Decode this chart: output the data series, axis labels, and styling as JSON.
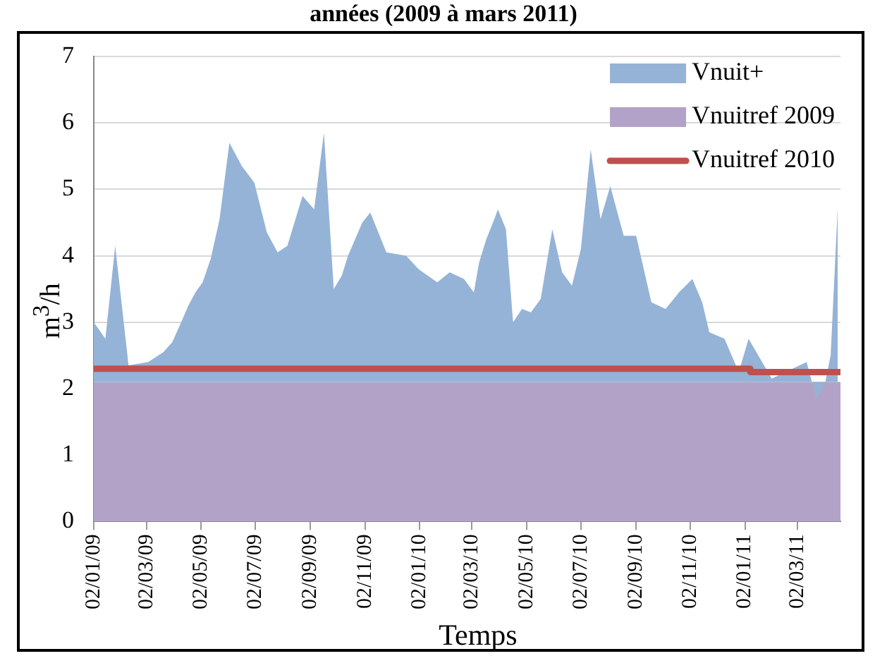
{
  "chart_data": {
    "type": "area",
    "title": "années (2009 à mars 2011)",
    "xlabel": "Temps",
    "ylabel": "m$^{3}$/h",
    "series": [
      {
        "name": "Vnuit+",
        "type": "area",
        "color": "#95b3d7",
        "x": [
          "2009-01-02",
          "2009-01-15",
          "2009-01-26",
          "2009-02-10",
          "2009-03-04",
          "2009-03-21",
          "2009-03-31",
          "2009-04-10",
          "2009-04-18",
          "2009-04-26",
          "2009-05-04",
          "2009-05-13",
          "2009-05-23",
          "2009-06-03",
          "2009-06-17",
          "2009-07-01",
          "2009-07-15",
          "2009-07-27",
          "2009-08-07",
          "2009-08-24",
          "2009-09-06",
          "2009-09-17",
          "2009-09-28",
          "2009-10-07",
          "2009-10-14",
          "2009-10-22",
          "2009-10-30",
          "2009-11-08",
          "2009-11-26",
          "2009-12-18",
          "2010-01-01",
          "2010-01-22",
          "2010-02-05",
          "2010-02-21",
          "2010-03-04",
          "2010-03-10",
          "2010-03-18",
          "2010-03-27",
          "2010-03-31",
          "2010-04-09",
          "2010-04-17",
          "2010-04-27",
          "2010-05-07",
          "2010-05-18",
          "2010-05-31",
          "2010-06-11",
          "2010-06-22",
          "2010-07-02",
          "2010-07-13",
          "2010-07-24",
          "2010-08-04",
          "2010-08-19",
          "2010-09-02",
          "2010-09-19",
          "2010-10-05",
          "2010-10-20",
          "2010-11-04",
          "2010-11-15",
          "2010-11-23",
          "2010-12-10",
          "2010-12-26",
          "2011-01-06",
          "2011-02-01",
          "2011-03-12",
          "2011-03-23",
          "2011-04-02",
          "2011-04-08",
          "2011-04-16"
        ],
        "values": [
          3.0,
          2.75,
          4.15,
          2.35,
          2.4,
          2.55,
          2.7,
          3.0,
          3.25,
          3.45,
          3.6,
          3.95,
          4.55,
          5.7,
          5.35,
          5.1,
          4.35,
          4.05,
          4.15,
          4.9,
          4.7,
          5.85,
          3.5,
          3.7,
          4.0,
          4.25,
          4.5,
          4.65,
          4.05,
          4.0,
          3.8,
          3.6,
          3.75,
          3.65,
          3.45,
          3.9,
          4.25,
          4.55,
          4.7,
          4.4,
          3.0,
          3.2,
          3.15,
          3.35,
          4.4,
          3.75,
          3.55,
          4.1,
          5.6,
          4.55,
          5.05,
          4.3,
          4.3,
          3.3,
          3.2,
          3.45,
          3.65,
          3.3,
          2.85,
          2.75,
          2.25,
          2.75,
          2.15,
          2.4,
          1.85,
          2.1,
          2.5,
          4.75
        ]
      },
      {
        "name": "Vnuitref 2009",
        "type": "area",
        "color": "#b3a2c7",
        "x": [
          "2009-01-02",
          "2011-04-19"
        ],
        "values": [
          2.1,
          2.1
        ]
      },
      {
        "name": "Vnuitref 2010",
        "type": "line",
        "color": "#c0504d",
        "x": [
          "2009-01-02",
          "2011-01-08",
          "2011-01-08",
          "2011-04-19"
        ],
        "values": [
          2.3,
          2.3,
          2.25,
          2.25
        ]
      }
    ],
    "xlim": [
      "2009-01-02",
      "2011-04-19"
    ],
    "xticks": [
      {
        "value": "2009-01-02",
        "label": "02/01/09"
      },
      {
        "value": "2009-03-02",
        "label": "02/03/09"
      },
      {
        "value": "2009-05-02",
        "label": "02/05/09"
      },
      {
        "value": "2009-07-02",
        "label": "02/07/09"
      },
      {
        "value": "2009-09-02",
        "label": "02/09/09"
      },
      {
        "value": "2009-11-02",
        "label": "02/11/09"
      },
      {
        "value": "2010-01-02",
        "label": "02/01/10"
      },
      {
        "value": "2010-03-02",
        "label": "02/03/10"
      },
      {
        "value": "2010-05-02",
        "label": "02/05/10"
      },
      {
        "value": "2010-07-02",
        "label": "02/07/10"
      },
      {
        "value": "2010-09-02",
        "label": "02/09/10"
      },
      {
        "value": "2010-11-02",
        "label": "02/11/10"
      },
      {
        "value": "2011-01-02",
        "label": "02/01/11"
      },
      {
        "value": "2011-03-02",
        "label": "02/03/11"
      }
    ],
    "ylim": [
      0,
      7
    ],
    "yticks": [
      0,
      1,
      2,
      3,
      4,
      5,
      6,
      7
    ],
    "grid": "y",
    "legend": "top right"
  }
}
